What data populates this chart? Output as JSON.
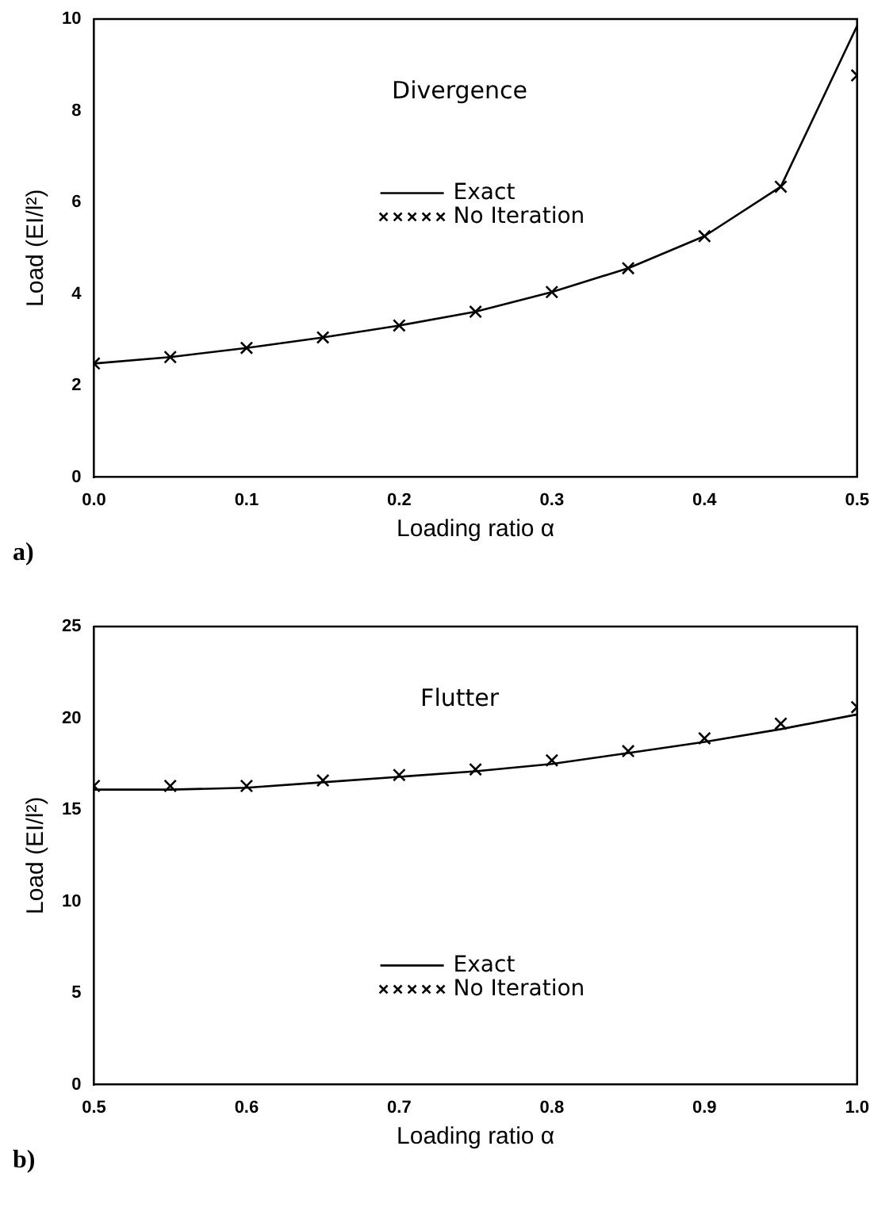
{
  "chart_data": [
    {
      "type": "line",
      "title": "Divergence",
      "xlabel": "Loading ratio α",
      "ylabel": "Load (EI/l²)",
      "xlim": [
        0,
        0.5
      ],
      "xticks": [
        {
          "value": 0,
          "label": "0.0"
        },
        0.1,
        0.2,
        0.3,
        0.4,
        0.5
      ],
      "ylim": [
        0,
        10
      ],
      "yticks": [
        0,
        2,
        4,
        6,
        8,
        10
      ],
      "legend": "top",
      "grid": false,
      "annotations": [
        "a)"
      ],
      "series": [
        {
          "name": "Exact",
          "type": "line",
          "marker": "none",
          "color": "#000000",
          "x": [
            0,
            0.05,
            0.1,
            0.15,
            0.2,
            0.25,
            0.3,
            0.35,
            0.4,
            0.45,
            0.5
          ],
          "values": [
            2.48,
            2.62,
            2.82,
            3.05,
            3.31,
            3.61,
            4.04,
            4.56,
            5.26,
            6.34,
            9.85
          ]
        },
        {
          "name": "No Iteration",
          "type": "scatter",
          "marker": "cross",
          "color": "#000000",
          "x": [
            0,
            0.05,
            0.1,
            0.15,
            0.2,
            0.25,
            0.3,
            0.35,
            0.4,
            0.45,
            0.5
          ],
          "values": [
            2.48,
            2.62,
            2.82,
            3.05,
            3.31,
            3.61,
            4.04,
            4.56,
            5.26,
            6.34,
            8.77
          ]
        }
      ]
    },
    {
      "type": "line",
      "title": "Flutter",
      "xlabel": "Loading ratio α",
      "ylabel": "Load (EI/l²)",
      "xlim": [
        0.5,
        1.0
      ],
      "xticks": [
        0.5,
        0.6,
        0.7,
        0.8,
        0.9,
        {
          "value": 1.0,
          "label": "1.0"
        }
      ],
      "ylim": [
        0,
        25
      ],
      "yticks": [
        0,
        5,
        10,
        15,
        20,
        25
      ],
      "legend": "bottom",
      "grid": false,
      "annotations": [
        "b)"
      ],
      "series": [
        {
          "name": "Exact",
          "type": "line",
          "marker": "none",
          "color": "#000000",
          "x": [
            0.5,
            0.55,
            0.6,
            0.65,
            0.7,
            0.75,
            0.8,
            0.85,
            0.9,
            0.95,
            1.0
          ],
          "values": [
            16.1,
            16.1,
            16.2,
            16.5,
            16.8,
            17.1,
            17.5,
            18.1,
            18.7,
            19.4,
            20.2
          ]
        },
        {
          "name": "No Iteration",
          "type": "scatter",
          "marker": "cross",
          "color": "#000000",
          "x": [
            0.5,
            0.55,
            0.6,
            0.65,
            0.7,
            0.75,
            0.8,
            0.85,
            0.9,
            0.95,
            1.0
          ],
          "values": [
            16.3,
            16.3,
            16.3,
            16.6,
            16.9,
            17.2,
            17.7,
            18.2,
            18.9,
            19.7,
            20.6
          ]
        }
      ]
    }
  ]
}
